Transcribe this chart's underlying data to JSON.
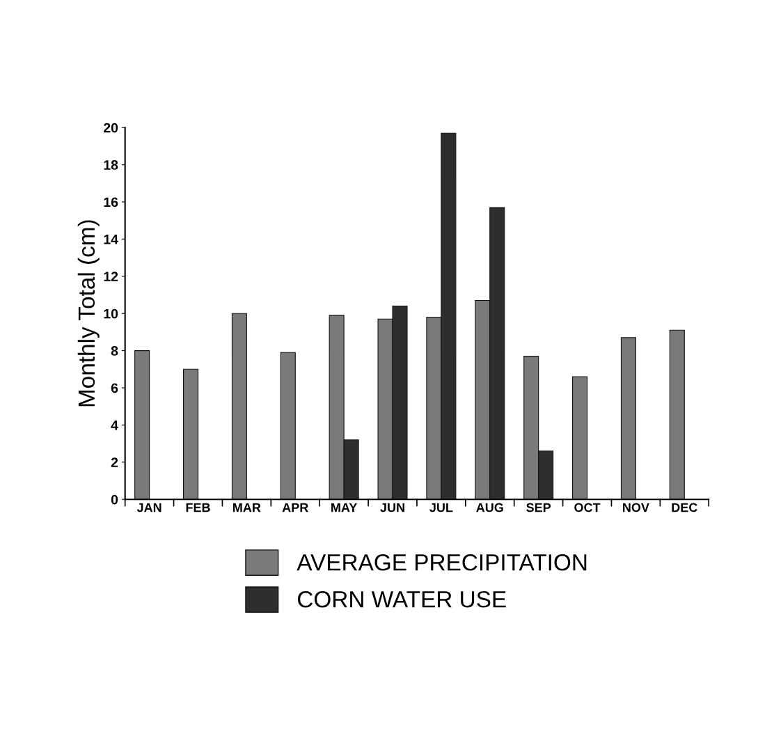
{
  "chart_data": {
    "type": "bar",
    "ylabel": "Monthly Total (cm)",
    "categories": [
      "JAN",
      "FEB",
      "MAR",
      "APR",
      "MAY",
      "JUN",
      "JUL",
      "AUG",
      "SEP",
      "OCT",
      "NOV",
      "DEC"
    ],
    "series": [
      {
        "name": "AVERAGE PRECIPITATION",
        "color": "#7a7a7a",
        "values": [
          8.0,
          7.0,
          10.0,
          7.9,
          9.9,
          9.7,
          9.8,
          10.7,
          7.7,
          6.6,
          8.7,
          9.1
        ]
      },
      {
        "name": "CORN WATER USE",
        "color": "#2e2e2e",
        "values": [
          null,
          null,
          null,
          null,
          3.2,
          10.4,
          19.7,
          15.7,
          2.6,
          null,
          null,
          null
        ]
      }
    ],
    "ylim": [
      0,
      20
    ],
    "yticks": [
      0,
      2,
      4,
      6,
      8,
      10,
      12,
      14,
      16,
      18,
      20
    ],
    "grid": false,
    "legend": "bottom"
  }
}
